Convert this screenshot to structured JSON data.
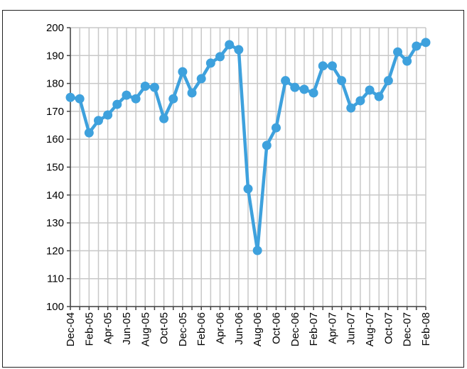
{
  "chart_data": {
    "type": "line",
    "categories": [
      "Dec-04",
      null,
      "Feb-05",
      null,
      "Apr-05",
      null,
      "Jun-05",
      null,
      "Aug-05",
      null,
      "Oct-05",
      null,
      "Dec-05",
      null,
      "Feb-06",
      null,
      "Apr-06",
      null,
      "Jun-06",
      null,
      "Aug-06",
      null,
      "Oct-06",
      null,
      "Dec-06",
      null,
      "Feb-07",
      null,
      "Apr-07",
      null,
      "Jun-07",
      null,
      "Aug-07",
      null,
      "Oct-07",
      null,
      "Dec-07",
      null,
      "Feb-08"
    ],
    "series": [
      {
        "color": "#3ea1dd",
        "values": [
          175,
          174.5,
          162.3,
          166.7,
          168.7,
          172.5,
          175.8,
          174.5,
          179,
          178.6,
          167.4,
          174.5,
          184.2,
          176.6,
          181.7,
          187.3,
          189.6,
          193.9,
          192.1,
          142.2,
          120.1,
          157.8,
          164.1,
          181,
          178.6,
          177.9,
          176.6,
          186.3,
          186.3,
          181,
          171.2,
          173.8,
          177.6,
          175.3,
          181,
          191.3,
          188,
          193.4,
          194.7
        ]
      }
    ],
    "ylim": [
      100,
      200
    ],
    "yticks": [
      100,
      110,
      120,
      130,
      140,
      150,
      160,
      170,
      180,
      190,
      200
    ],
    "grid": true
  }
}
